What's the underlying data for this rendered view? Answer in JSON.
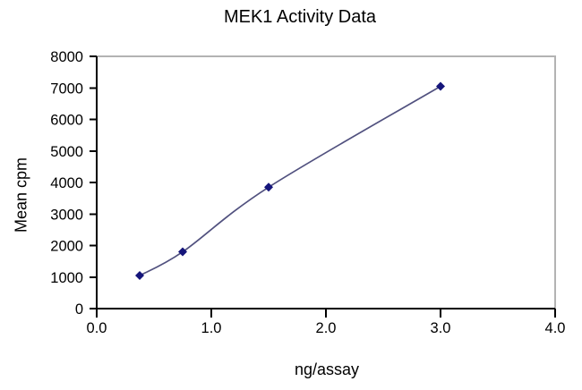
{
  "page": {
    "background_color": "#ffffff",
    "text_color": "#000000"
  },
  "chart_data": {
    "type": "line",
    "title": "MEK1 Activity Data",
    "xlabel": "ng/assay",
    "ylabel": "Mean cpm",
    "x": [
      0.375,
      0.75,
      1.5,
      3.0
    ],
    "y": [
      1050,
      1800,
      3850,
      7050
    ],
    "xlim": [
      0.0,
      4.0
    ],
    "ylim": [
      0,
      8000
    ],
    "x_tick_labels": [
      "0.0",
      "1.0",
      "2.0",
      "3.0",
      "4.0"
    ],
    "y_tick_labels": [
      "0",
      "1000",
      "2000",
      "3000",
      "4000",
      "5000",
      "6000",
      "7000",
      "8000"
    ],
    "grid": false,
    "legend": "none",
    "marker": "diamond",
    "line_smoothed": true,
    "line_color": "#51517F",
    "marker_color": "#15157B",
    "axis_color": "#000000",
    "frame_color": "#b3b3b3"
  }
}
